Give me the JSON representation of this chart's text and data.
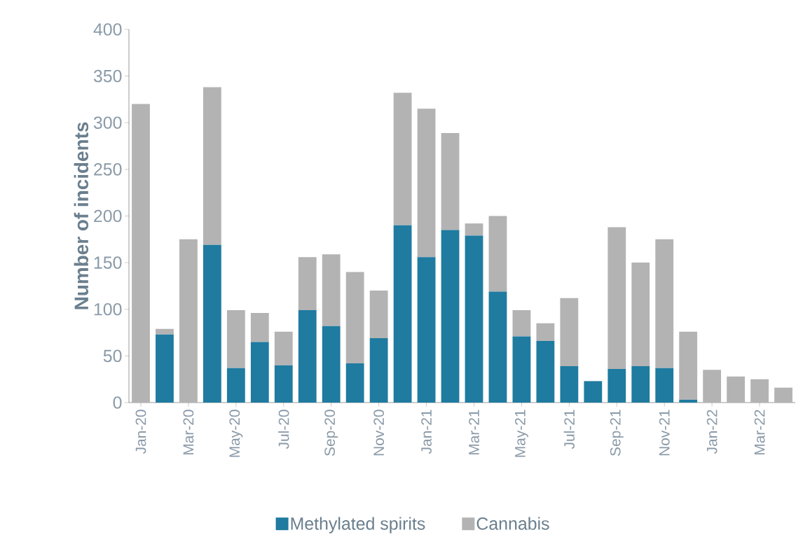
{
  "chart_data": {
    "type": "bar",
    "stacked": true,
    "ylabel": "Number of incidents",
    "categories": [
      "Jan-20",
      null,
      "Mar-20",
      null,
      "May-20",
      null,
      "Jul-20",
      null,
      "Sep-20",
      null,
      "Nov-20",
      null,
      "Jan-21",
      null,
      "Mar-21",
      null,
      "May-21",
      null,
      "Jul-21",
      null,
      "Sep-21",
      null,
      "Nov-21",
      null,
      "Jan-22",
      null,
      "Mar-22",
      null
    ],
    "series": [
      {
        "name": "Methylated spirits",
        "color": "#1f7ba0",
        "values": [
          0,
          73,
          0,
          169,
          37,
          65,
          40,
          99,
          82,
          42,
          69,
          190,
          156,
          185,
          179,
          119,
          71,
          66,
          39,
          23,
          36,
          39,
          37,
          3,
          0,
          0,
          0,
          0
        ]
      },
      {
        "name": "Cannabis",
        "color": "#b3b3b3",
        "values": [
          320,
          6,
          175,
          169,
          62,
          31,
          36,
          57,
          77,
          98,
          51,
          142,
          159,
          104,
          13,
          81,
          28,
          19,
          73,
          0,
          152,
          111,
          138,
          73,
          35,
          28,
          25,
          16
        ]
      }
    ],
    "ylim": [
      0,
      400
    ],
    "yticks": [
      0,
      50,
      100,
      150,
      200,
      250,
      300,
      350,
      400
    ],
    "grid": false,
    "legend": "bottom"
  }
}
